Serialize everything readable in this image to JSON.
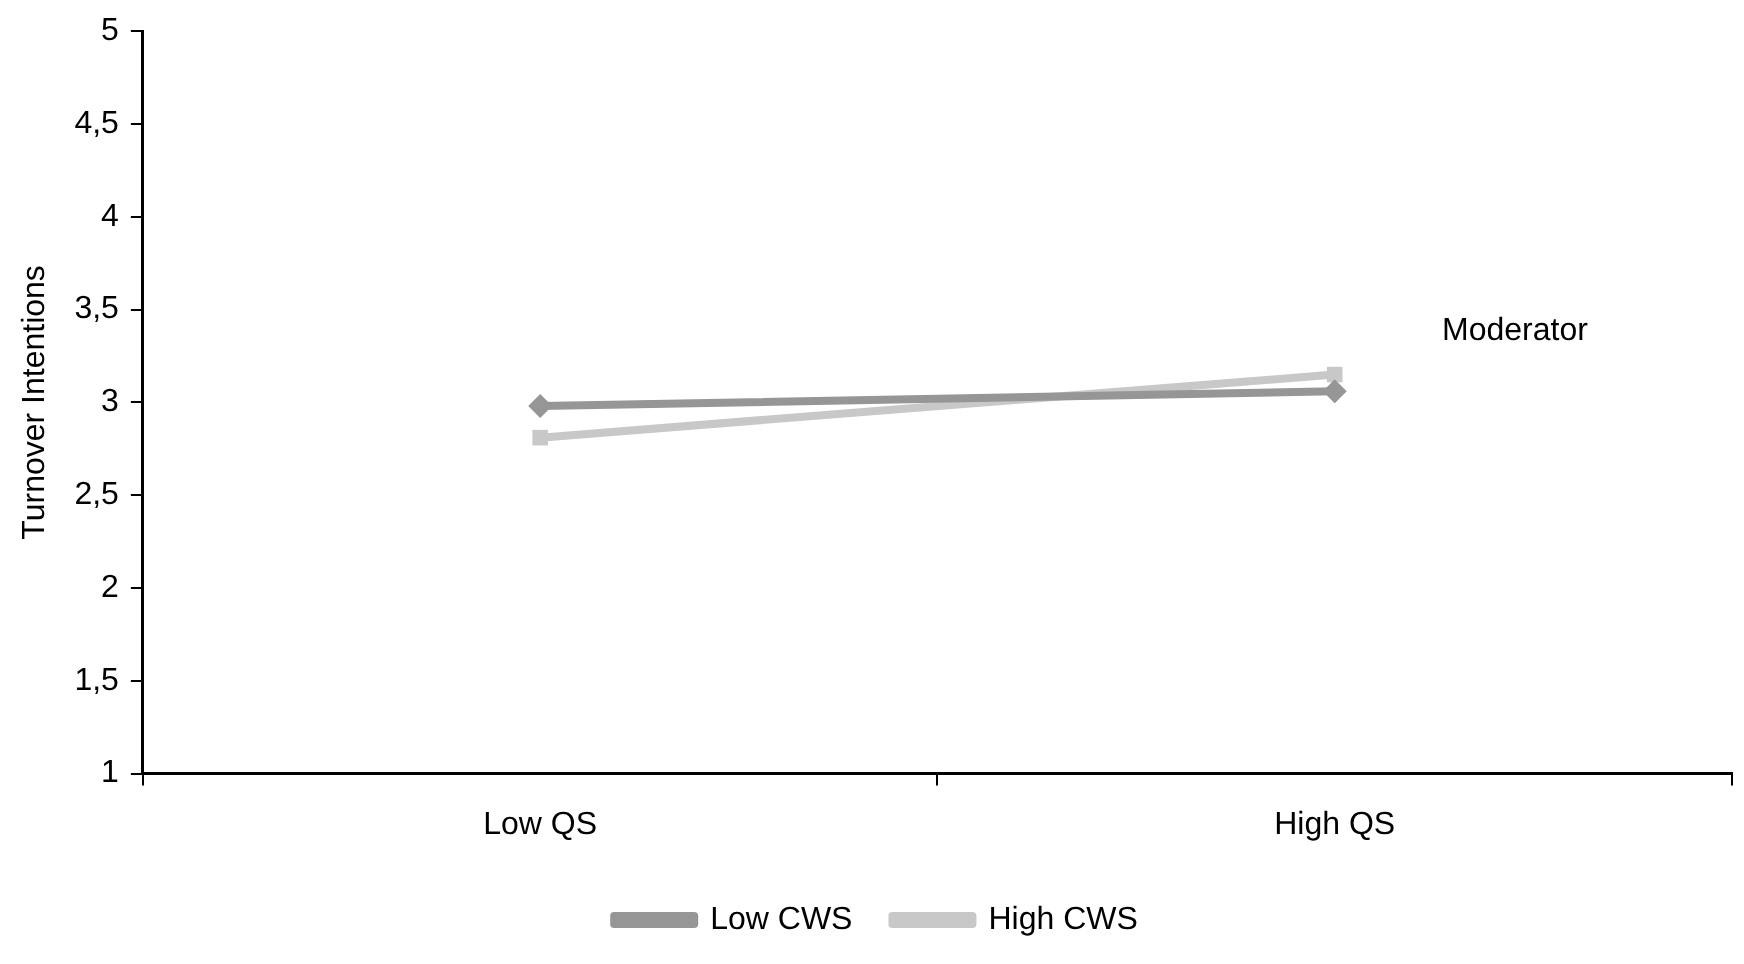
{
  "chart_data": {
    "type": "line",
    "ylabel": "Turnover Intentions",
    "annotations": [
      "Moderator"
    ],
    "categories": [
      "Low QS",
      "High QS"
    ],
    "series": [
      {
        "name": "Low CWS",
        "color": "#969696",
        "values": [
          2.98,
          3.06
        ],
        "marker": "diamond"
      },
      {
        "name": "High CWS",
        "color": "#c8c8c8",
        "values": [
          2.81,
          3.15
        ],
        "marker": "square"
      }
    ],
    "ylim": [
      1,
      5
    ],
    "yticks": [
      1,
      {
        "value": 1.5,
        "label": "1,5"
      },
      2,
      {
        "value": 2.5,
        "label": "2,5"
      },
      3,
      {
        "value": 3.5,
        "label": "3,5"
      },
      4,
      {
        "value": 4.5,
        "label": "4,5"
      },
      5
    ],
    "grid": false,
    "legend": "bottom",
    "line_style": "solid"
  }
}
